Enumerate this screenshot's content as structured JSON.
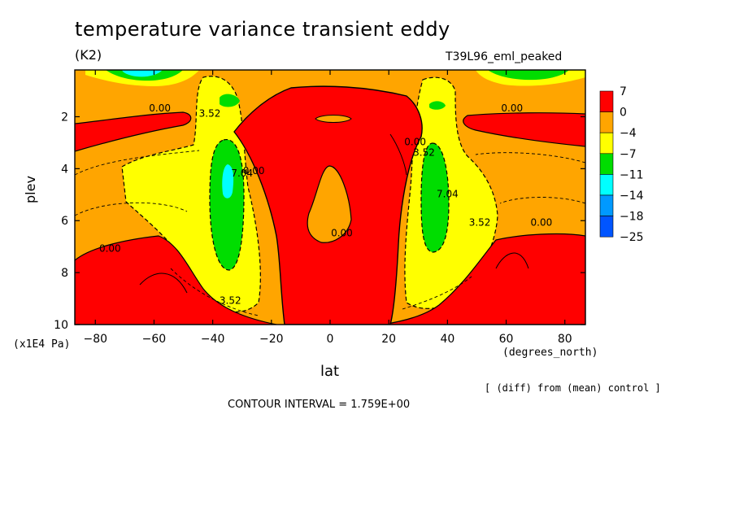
{
  "chart_data": {
    "type": "heatmap",
    "subtype": "filled-contour",
    "title": "temperature variance transient eddy",
    "units": "(K2)",
    "run_label": "T39L96_eml_peaked",
    "xlabel": "lat",
    "x_units": "(degrees_north)",
    "ylabel": "plev",
    "y_units": "(x1E4 Pa)",
    "xlim": [
      -87,
      87
    ],
    "ylim": [
      10,
      0.2
    ],
    "x_ticks": [
      -80,
      -60,
      -40,
      -20,
      0,
      20,
      40,
      60,
      80
    ],
    "x_tick_labels": [
      "-80",
      "-60",
      "-40",
      "-20",
      "0",
      "20",
      "40",
      "60",
      "80"
    ],
    "y_ticks": [
      2,
      4,
      6,
      8,
      10
    ],
    "y_tick_labels": [
      "2",
      "4",
      "6",
      "8",
      "10"
    ],
    "colorbar": {
      "levels": [
        "7",
        "0",
        "-4",
        "-7",
        "-11",
        "-14",
        "-18",
        "-25"
      ],
      "colors": [
        "#ff0000",
        "#ffa500",
        "#ffff00",
        "#00dd00",
        "#00ffff",
        "#0099ff",
        "#0055ff"
      ]
    },
    "contour_labels": [
      {
        "text": "0.00",
        "lat": -58,
        "plev": 1.8
      },
      {
        "text": "3.52",
        "lat": -41,
        "plev": 2.0
      },
      {
        "text": "0.00",
        "lat": -26,
        "plev": 4.2
      },
      {
        "text": "7.04",
        "lat": -30,
        "plev": 4.3
      },
      {
        "text": "0.00",
        "lat": -75,
        "plev": 7.2
      },
      {
        "text": "3.52",
        "lat": -34,
        "plev": 9.2
      },
      {
        "text": "0.00",
        "lat": 4,
        "plev": 6.6
      },
      {
        "text": "0.00",
        "lat": 62,
        "plev": 1.8
      },
      {
        "text": "0.00",
        "lat": 29,
        "plev": 3.1
      },
      {
        "text": "3.52",
        "lat": 32,
        "plev": 3.5
      },
      {
        "text": "7.04",
        "lat": 40,
        "plev": 5.1
      },
      {
        "text": "3.52",
        "lat": 51,
        "plev": 6.2
      },
      {
        "text": "0.00",
        "lat": 72,
        "plev": 6.2
      }
    ],
    "contour_interval_text": "CONTOUR INTERVAL = 1.759E+00",
    "note": "[ (diff) from (mean) control ]"
  }
}
